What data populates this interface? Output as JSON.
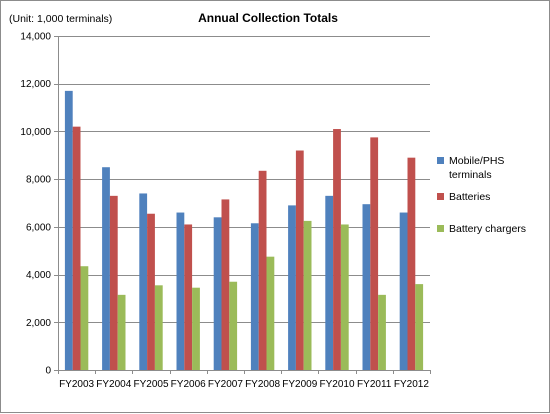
{
  "chart_data": {
    "type": "bar",
    "title": "Annual Collection Totals",
    "unit_label": "(Unit: 1,000 terminals)",
    "categories": [
      "FY2003",
      "FY2004",
      "FY2005",
      "FY2006",
      "FY2007",
      "FY2008",
      "FY2009",
      "FY2010",
      "FY2011",
      "FY2012"
    ],
    "series": [
      {
        "name": "Mobile/PHS terminals",
        "color": "#4f81bd",
        "values": [
          11700,
          8500,
          7400,
          6600,
          6400,
          6150,
          6900,
          7300,
          6950,
          6600
        ]
      },
      {
        "name": "Batteries",
        "color": "#c0504d",
        "values": [
          10200,
          7300,
          6550,
          6100,
          7150,
          8350,
          9200,
          10100,
          9750,
          8900
        ]
      },
      {
        "name": "Battery chargers",
        "color": "#9bbb59",
        "values": [
          4350,
          3150,
          3550,
          3450,
          3700,
          4750,
          6250,
          6100,
          3150,
          3600
        ]
      }
    ],
    "ylim": [
      0,
      14000
    ],
    "yticks": [
      0,
      2000,
      4000,
      6000,
      8000,
      10000,
      12000,
      14000
    ],
    "ytick_labels": [
      "0",
      "2,000",
      "4,000",
      "6,000",
      "8,000",
      "10,000",
      "12,000",
      "14,000"
    ],
    "grid": true,
    "legend_position": "right"
  }
}
